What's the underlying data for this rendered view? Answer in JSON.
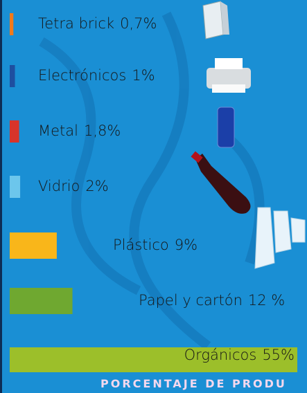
{
  "chart_data": {
    "type": "bar",
    "categories": [
      "Tetra brick",
      "Electrónicos",
      "Metal",
      "Vidrio",
      "Plástico",
      "Papel y cartón",
      "Orgánicos"
    ],
    "values": [
      0.7,
      1,
      1.8,
      2,
      9,
      12,
      55
    ],
    "value_labels": [
      "0,7%",
      "1%",
      "1,8%",
      "2%",
      "9%",
      "12 %",
      "55%"
    ],
    "colors": [
      "#f07a1a",
      "#1e4fa0",
      "#d8342a",
      "#6cc6ec",
      "#f9b61a",
      "#6fa830",
      "#9cbf2a"
    ],
    "footer": "PORCENTAJE DE PRODU"
  }
}
